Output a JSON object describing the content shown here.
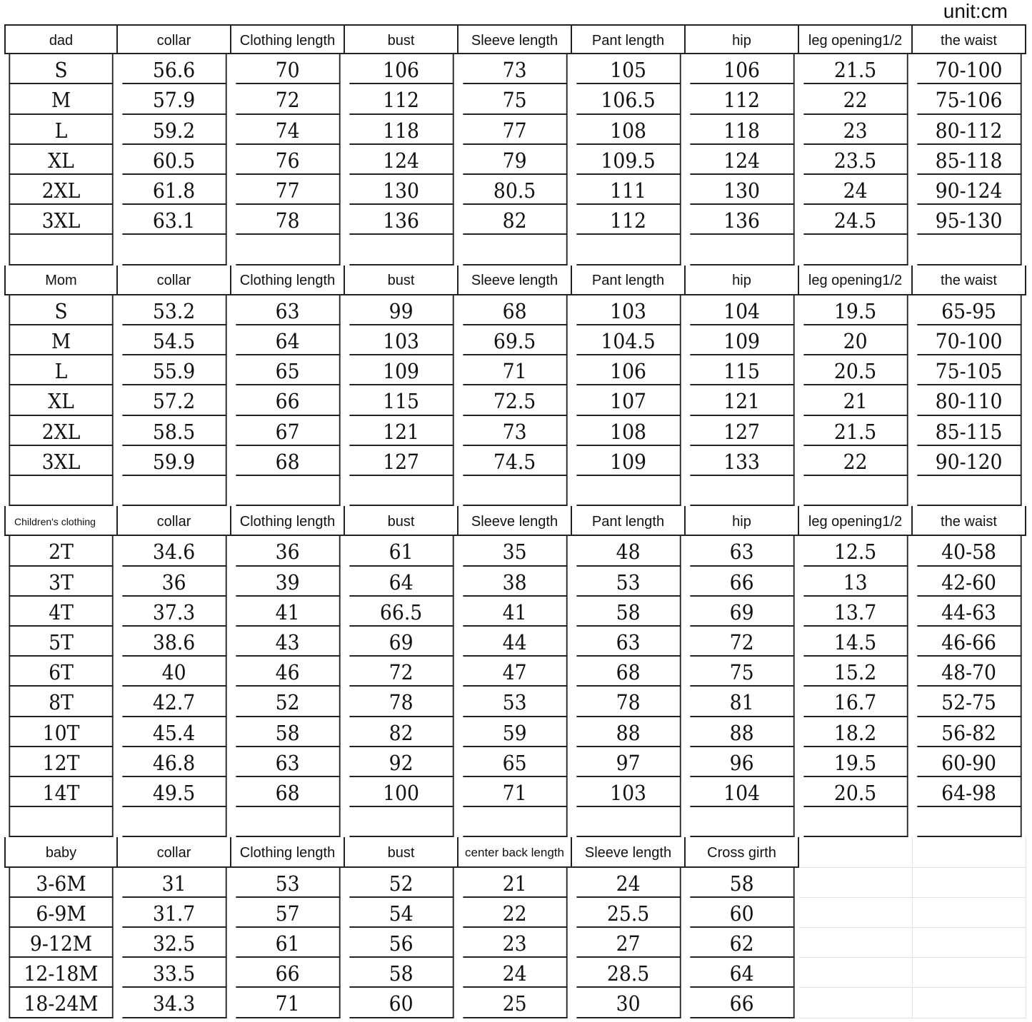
{
  "unit_label": "unit:cm",
  "sections": [
    {
      "headers": [
        "dad",
        "collar",
        "Clothing length",
        "bust",
        "Sleeve length",
        "Pant length",
        "hip",
        "leg opening1/2",
        "the waist"
      ],
      "rows": [
        [
          "S",
          "56.6",
          "70",
          "106",
          "73",
          "105",
          "106",
          "21.5",
          "70-100"
        ],
        [
          "M",
          "57.9",
          "72",
          "112",
          "75",
          "106.5",
          "112",
          "22",
          "75-106"
        ],
        [
          "L",
          "59.2",
          "74",
          "118",
          "77",
          "108",
          "118",
          "23",
          "80-112"
        ],
        [
          "XL",
          "60.5",
          "76",
          "124",
          "79",
          "109.5",
          "124",
          "23.5",
          "85-118"
        ],
        [
          "2XL",
          "61.8",
          "77",
          "130",
          "80.5",
          "111",
          "130",
          "24",
          "90-124"
        ],
        [
          "3XL",
          "63.1",
          "78",
          "136",
          "82",
          "112",
          "136",
          "24.5",
          "95-130"
        ]
      ]
    },
    {
      "headers": [
        "Mom",
        "collar",
        "Clothing length",
        "bust",
        "Sleeve length",
        "Pant length",
        "hip",
        "leg opening1/2",
        "the waist"
      ],
      "rows": [
        [
          "S",
          "53.2",
          "63",
          "99",
          "68",
          "103",
          "104",
          "19.5",
          "65-95"
        ],
        [
          "M",
          "54.5",
          "64",
          "103",
          "69.5",
          "104.5",
          "109",
          "20",
          "70-100"
        ],
        [
          "L",
          "55.9",
          "65",
          "109",
          "71",
          "106",
          "115",
          "20.5",
          "75-105"
        ],
        [
          "XL",
          "57.2",
          "66",
          "115",
          "72.5",
          "107",
          "121",
          "21",
          "80-110"
        ],
        [
          "2XL",
          "58.5",
          "67",
          "121",
          "73",
          "108",
          "127",
          "21.5",
          "85-115"
        ],
        [
          "3XL",
          "59.9",
          "68",
          "127",
          "74.5",
          "109",
          "133",
          "22",
          "90-120"
        ]
      ]
    },
    {
      "headers": [
        "Children's clothing",
        "collar",
        "Clothing length",
        "bust",
        "Sleeve length",
        "Pant length",
        "hip",
        "leg opening1/2",
        "the waist"
      ],
      "rows": [
        [
          "2T",
          "34.6",
          "36",
          "61",
          "35",
          "48",
          "63",
          "12.5",
          "40-58"
        ],
        [
          "3T",
          "36",
          "39",
          "64",
          "38",
          "53",
          "66",
          "13",
          "42-60"
        ],
        [
          "4T",
          "37.3",
          "41",
          "66.5",
          "41",
          "58",
          "69",
          "13.7",
          "44-63"
        ],
        [
          "5T",
          "38.6",
          "43",
          "69",
          "44",
          "63",
          "72",
          "14.5",
          "46-66"
        ],
        [
          "6T",
          "40",
          "46",
          "72",
          "47",
          "68",
          "75",
          "15.2",
          "48-70"
        ],
        [
          "8T",
          "42.7",
          "52",
          "78",
          "53",
          "78",
          "81",
          "16.7",
          "52-75"
        ],
        [
          "10T",
          "45.4",
          "58",
          "82",
          "59",
          "88",
          "88",
          "18.2",
          "56-82"
        ],
        [
          "12T",
          "46.8",
          "63",
          "92",
          "65",
          "97",
          "96",
          "19.5",
          "60-90"
        ],
        [
          "14T",
          "49.5",
          "68",
          "100",
          "71",
          "103",
          "104",
          "20.5",
          "64-98"
        ]
      ]
    },
    {
      "headers": [
        "baby",
        "collar",
        "Clothing length",
        "bust",
        "center back length",
        "Sleeve length",
        "Cross girth"
      ],
      "rows": [
        [
          "3-6M",
          "31",
          "53",
          "52",
          "21",
          "24",
          "58"
        ],
        [
          "6-9M",
          "31.7",
          "57",
          "54",
          "22",
          "25.5",
          "60"
        ],
        [
          "9-12M",
          "32.5",
          "61",
          "56",
          "23",
          "27",
          "62"
        ],
        [
          "12-18M",
          "33.5",
          "66",
          "58",
          "24",
          "28.5",
          "64"
        ],
        [
          "18-24M",
          "34.3",
          "71",
          "60",
          "25",
          "30",
          "66"
        ]
      ]
    }
  ]
}
